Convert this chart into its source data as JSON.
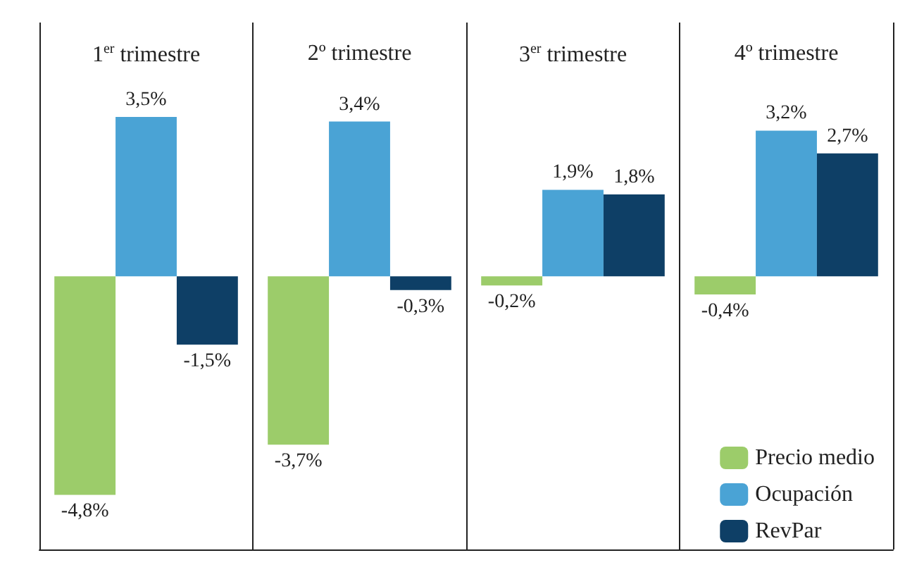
{
  "chart_data": {
    "type": "bar",
    "categories": [
      "1$^{er}$ trimestre",
      "2º trimestre",
      "3$^{er}$ trimestre",
      "4º trimestre"
    ],
    "series": [
      {
        "name": "Precio medio",
        "color": "#9ccc6a",
        "values": [
          -4.8,
          -3.7,
          -0.2,
          -0.4
        ],
        "value_labels": [
          "-4,8%",
          "-3,7%",
          "-0,2%",
          "-0,4%"
        ]
      },
      {
        "name": "Ocupación",
        "color": "#4aa3d5",
        "values": [
          3.5,
          3.4,
          1.9,
          3.2
        ],
        "value_labels": [
          "3,5%",
          "3,4%",
          "1,9%",
          "3,2%"
        ]
      },
      {
        "name": "RevPar",
        "color": "#0e3f66",
        "values": [
          -1.5,
          -0.3,
          1.8,
          2.7
        ],
        "value_labels": [
          "-1,5%",
          "-0,3%",
          "1,8%",
          "2,7%"
        ]
      }
    ],
    "grid": "x",
    "legend": "bottom right",
    "tick_labels": "x"
  }
}
